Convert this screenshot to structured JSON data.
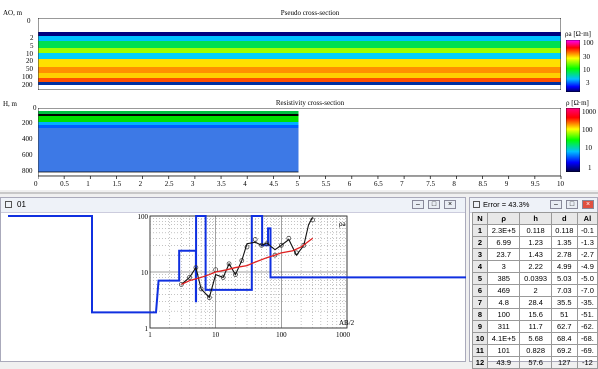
{
  "pseudo": {
    "title": "Pseudo cross-section",
    "axis_label": "AO, m",
    "ticks": [
      "0",
      "2",
      "5",
      "10",
      "20",
      "50",
      "100",
      "200"
    ],
    "scale_label": "ρa [Ω·m]",
    "scale_ticks": [
      "100",
      "30",
      "10",
      "3"
    ]
  },
  "resist": {
    "title": "Resistivity cross-section",
    "axis_label": "H, m",
    "ticks": [
      "0",
      "200",
      "400",
      "600",
      "800"
    ],
    "scale_label": "ρ [Ω·m]",
    "scale_ticks": [
      "1000",
      "100",
      "10",
      "1"
    ]
  },
  "x_axis_ticks": [
    "0",
    "0.5",
    "1",
    "1.5",
    "2",
    "2.5",
    "3",
    "3.5",
    "4",
    "4.5",
    "5",
    "5.5",
    "6",
    "6.5",
    "7",
    "7.5",
    "8",
    "8.5",
    "9",
    "9.5",
    "10"
  ],
  "sounding_window": {
    "title": "01",
    "curve_label": "ρa",
    "x_axis_label": "AB/2",
    "y_ticks": [
      "100",
      "10",
      "1"
    ],
    "x_ticks": [
      "1",
      "10",
      "100",
      "1000"
    ]
  },
  "table_window": {
    "title": "Error = 43.3%",
    "columns": [
      "N",
      "ρ",
      "h",
      "d",
      "Al"
    ],
    "rows": [
      [
        "1",
        "2.3E+5",
        "0.118",
        "0.118",
        "-0.1"
      ],
      [
        "2",
        "6.99",
        "1.23",
        "1.35",
        "-1.3"
      ],
      [
        "3",
        "23.7",
        "1.43",
        "2.78",
        "-2.7"
      ],
      [
        "4",
        "3",
        "2.22",
        "4.99",
        "-4.9"
      ],
      [
        "5",
        "385",
        "0.0393",
        "5.03",
        "-5.0"
      ],
      [
        "6",
        "469",
        "2",
        "7.03",
        "-7.0"
      ],
      [
        "7",
        "4.8",
        "28.4",
        "35.5",
        "-35."
      ],
      [
        "8",
        "100",
        "15.6",
        "51",
        "-51."
      ],
      [
        "9",
        "311",
        "11.7",
        "62.7",
        "-62."
      ],
      [
        "10",
        "4.1E+5",
        "5.68",
        "68.4",
        "-68."
      ],
      [
        "11",
        "101",
        "0.828",
        "69.2",
        "-69."
      ],
      [
        "12",
        "43.9",
        "57.6",
        "127",
        "-12"
      ]
    ]
  }
}
